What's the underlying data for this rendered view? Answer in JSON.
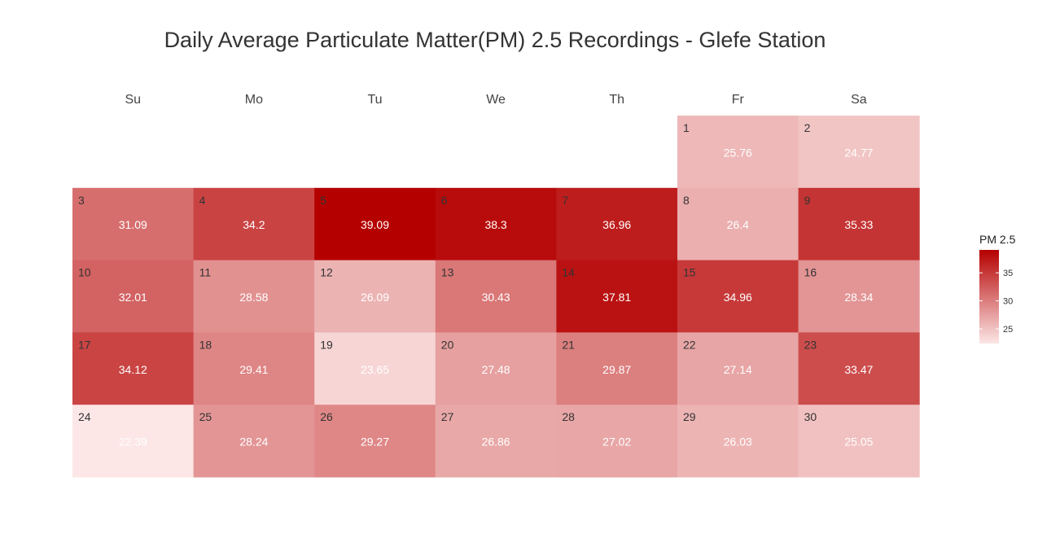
{
  "chart_data": {
    "type": "heatmap",
    "title": "Daily Average Particulate Matter(PM) 2.5 Recordings - Glefe Station",
    "weekdays": [
      "Su",
      "Mo",
      "Tu",
      "We",
      "Th",
      "Fr",
      "Sa"
    ],
    "first_weekday_index": 5,
    "days": [
      {
        "day": 1,
        "value": 25.76
      },
      {
        "day": 2,
        "value": 24.77
      },
      {
        "day": 3,
        "value": 31.09
      },
      {
        "day": 4,
        "value": 34.2
      },
      {
        "day": 5,
        "value": 39.09
      },
      {
        "day": 6,
        "value": 38.3
      },
      {
        "day": 7,
        "value": 36.96
      },
      {
        "day": 8,
        "value": 26.4
      },
      {
        "day": 9,
        "value": 35.33
      },
      {
        "day": 10,
        "value": 32.01
      },
      {
        "day": 11,
        "value": 28.58
      },
      {
        "day": 12,
        "value": 26.09
      },
      {
        "day": 13,
        "value": 30.43
      },
      {
        "day": 14,
        "value": 37.81
      },
      {
        "day": 15,
        "value": 34.96
      },
      {
        "day": 16,
        "value": 28.34
      },
      {
        "day": 17,
        "value": 34.12
      },
      {
        "day": 18,
        "value": 29.41
      },
      {
        "day": 19,
        "value": 23.65
      },
      {
        "day": 20,
        "value": 27.48
      },
      {
        "day": 21,
        "value": 29.87
      },
      {
        "day": 22,
        "value": 27.14
      },
      {
        "day": 23,
        "value": 33.47
      },
      {
        "day": 24,
        "value": 22.39
      },
      {
        "day": 25,
        "value": 28.24
      },
      {
        "day": 26,
        "value": 29.27
      },
      {
        "day": 27,
        "value": 26.86
      },
      {
        "day": 28,
        "value": 27.02
      },
      {
        "day": 29,
        "value": 26.03
      },
      {
        "day": 30,
        "value": 25.05
      }
    ],
    "legend": {
      "title": "PM 2.5",
      "ticks": [
        25,
        30,
        35
      ],
      "range": [
        22.39,
        39.09
      ],
      "placement": "right"
    },
    "colors": {
      "low": "#FCE6E6",
      "high": "#B50000"
    },
    "grid": false
  }
}
